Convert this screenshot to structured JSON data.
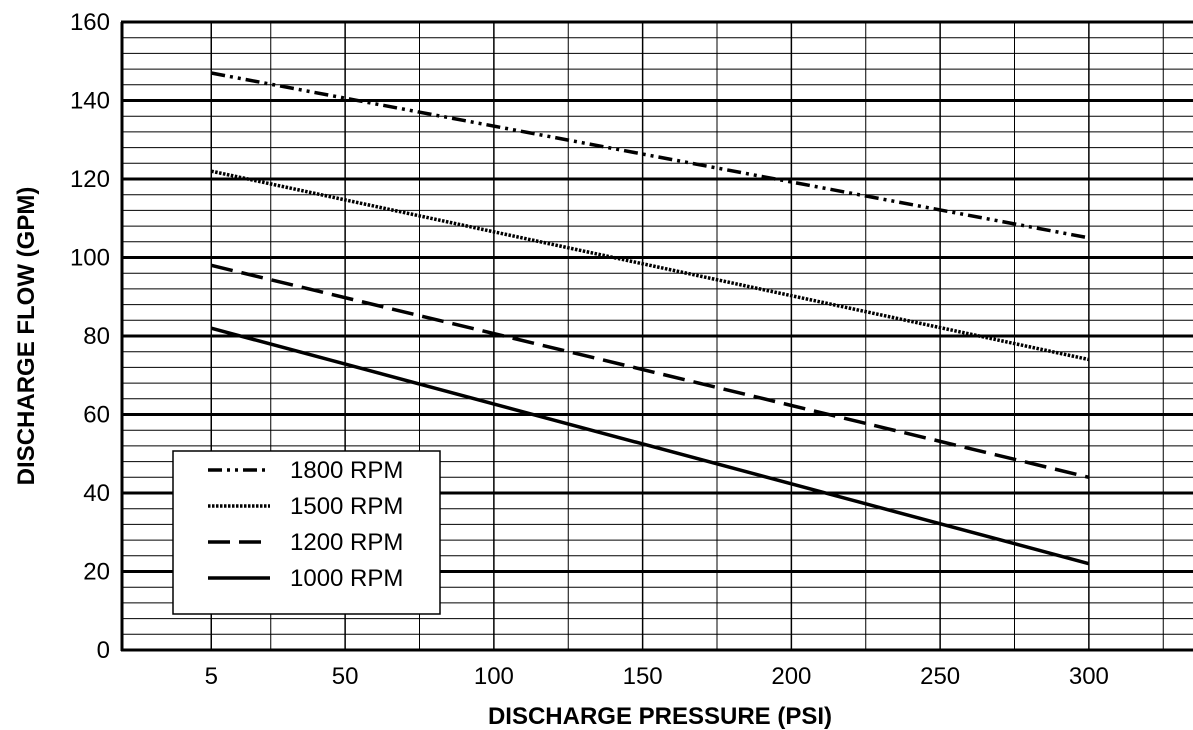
{
  "chart_data": {
    "type": "line",
    "xlabel": "DISCHARGE PRESSURE (PSI)",
    "ylabel": "DISCHARGE FLOW (GPM)",
    "x_ticks": [
      "5",
      "50",
      "100",
      "150",
      "200",
      "250",
      "300"
    ],
    "y_ticks": [
      "0",
      "20",
      "40",
      "60",
      "80",
      "100",
      "120",
      "140",
      "160"
    ],
    "xlim": [
      -25,
      335
    ],
    "ylim": [
      0,
      160
    ],
    "grid": true,
    "legend_position": "lower-left",
    "series": [
      {
        "name": "1800 RPM",
        "style": "dash-dot-dot",
        "x": [
          5,
          300
        ],
        "y": [
          147,
          105
        ]
      },
      {
        "name": "1500 RPM",
        "style": "dotted",
        "x": [
          5,
          300
        ],
        "y": [
          122,
          74
        ]
      },
      {
        "name": "1200 RPM",
        "style": "dashed",
        "x": [
          5,
          300
        ],
        "y": [
          98,
          44
        ]
      },
      {
        "name": "1000 RPM",
        "style": "solid",
        "x": [
          5,
          300
        ],
        "y": [
          82,
          22
        ]
      }
    ]
  }
}
